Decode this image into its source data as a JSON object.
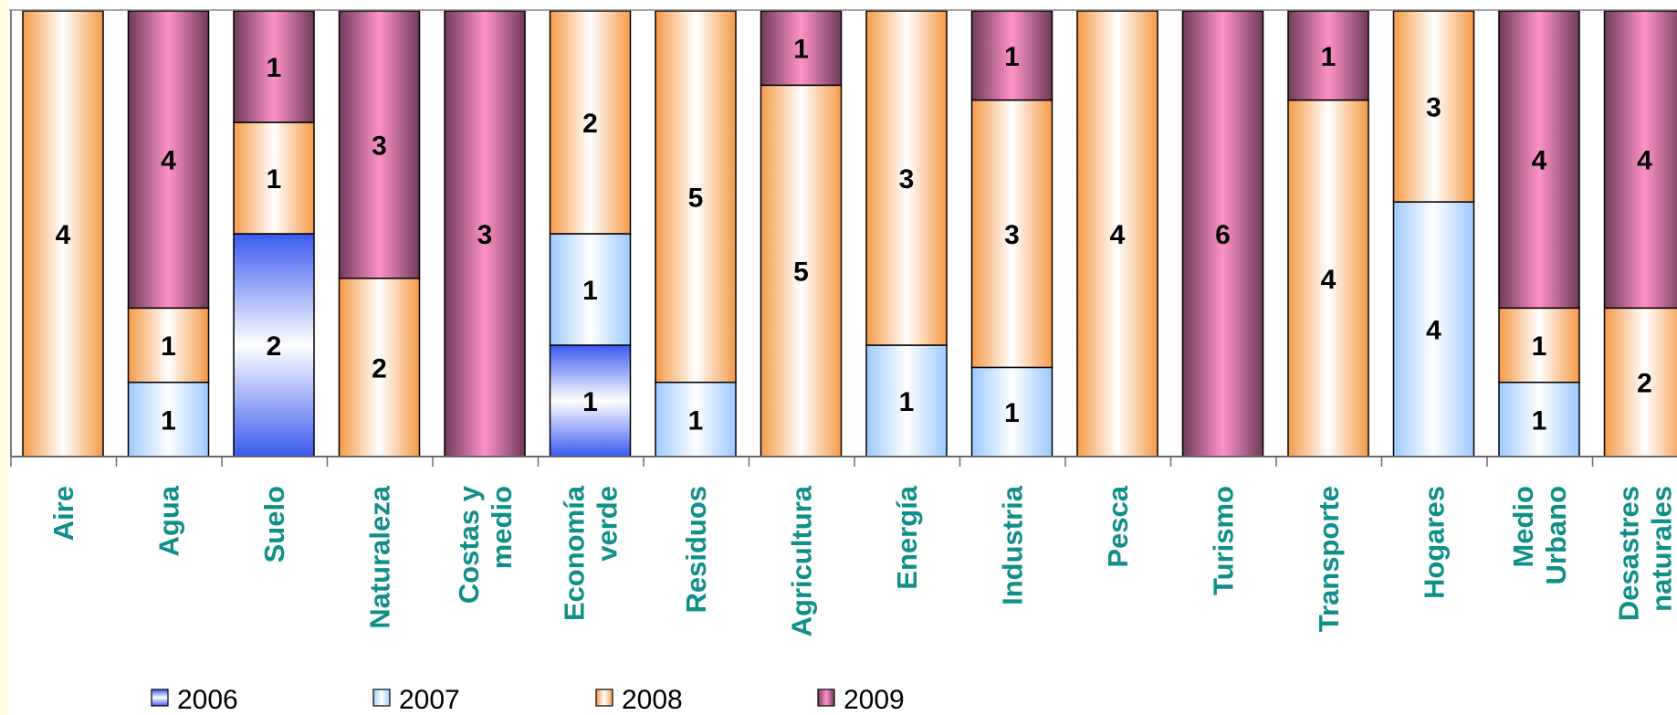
{
  "chart_data": {
    "type": "bar",
    "stacked": true,
    "title": "",
    "xlabel": "",
    "ylabel": "",
    "legend_position": "bottom",
    "grid": false,
    "categories": [
      [
        "Aire"
      ],
      [
        "Agua"
      ],
      [
        "Suelo"
      ],
      [
        "Naturaleza"
      ],
      [
        "Costas y",
        "medio"
      ],
      [
        "Economía",
        "verde"
      ],
      [
        "Residuos"
      ],
      [
        "Agricultura"
      ],
      [
        "Energía"
      ],
      [
        "Industria"
      ],
      [
        "Pesca"
      ],
      [
        "Turismo"
      ],
      [
        "Transporte"
      ],
      [
        "Hogares"
      ],
      [
        "Medio",
        "Urbano"
      ],
      [
        "Desastres",
        "naturales"
      ]
    ],
    "series": [
      {
        "name": "2006",
        "color": "#3c5cf0",
        "values": [
          0,
          0,
          2,
          0,
          0,
          1,
          0,
          0,
          0,
          0,
          0,
          0,
          0,
          0,
          0,
          0
        ]
      },
      {
        "name": "2007",
        "color": "#a8d0ff",
        "values": [
          0,
          1,
          0,
          0,
          0,
          1,
          1,
          0,
          1,
          1,
          0,
          0,
          0,
          4,
          1,
          0
        ]
      },
      {
        "name": "2008",
        "color": "#f5a055",
        "values": [
          4,
          1,
          1,
          2,
          0,
          2,
          5,
          5,
          3,
          3,
          4,
          0,
          4,
          3,
          1,
          2
        ]
      },
      {
        "name": "2009",
        "color": "#ee80b8",
        "values": [
          0,
          4,
          1,
          3,
          3,
          0,
          0,
          1,
          0,
          1,
          0,
          6,
          1,
          0,
          4,
          4
        ]
      }
    ]
  }
}
